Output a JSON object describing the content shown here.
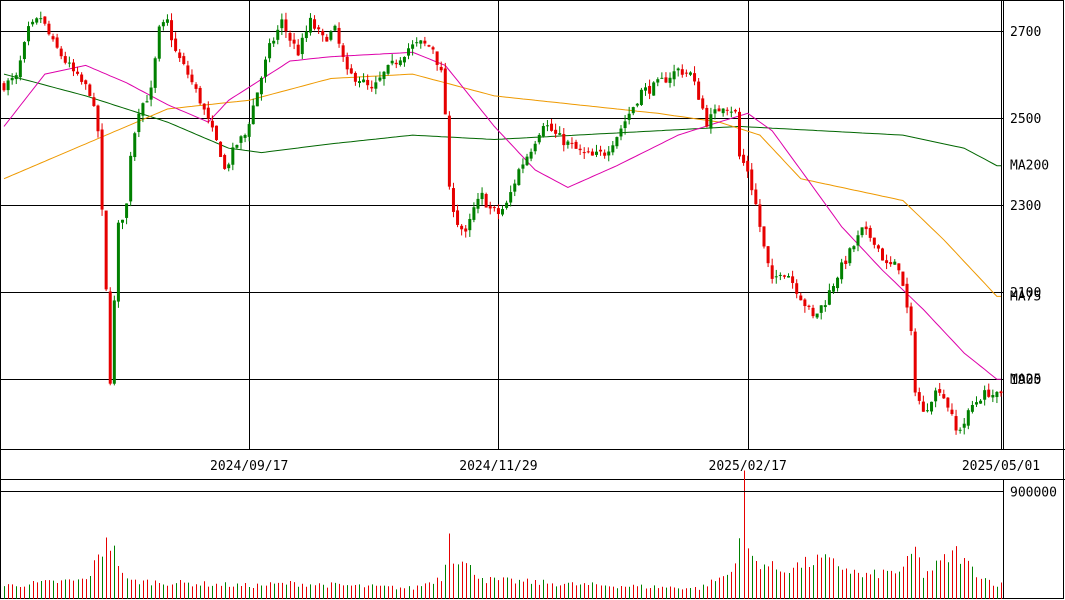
{
  "chart_data": {
    "type": "candlestick",
    "price_axis": {
      "ylim": [
        1740,
        2770
      ],
      "ticks": [
        1900,
        2100,
        2300,
        2500,
        2700
      ],
      "tick_labels": [
        "1900",
        "2100",
        "2300",
        "2500",
        "2700"
      ]
    },
    "volume_axis": {
      "ylim": [
        0,
        1000000
      ],
      "ticks": [
        900000
      ],
      "tick_labels": [
        "900000"
      ]
    },
    "date_ticks": [
      {
        "index": 60,
        "label": "2024/09/17"
      },
      {
        "index": 121,
        "label": "2024/11/29"
      },
      {
        "index": 182,
        "label": "2025/02/17"
      },
      {
        "index": 244,
        "label": "2025/05/01"
      }
    ],
    "legend": [
      {
        "name": "MA200",
        "color": "#006600"
      },
      {
        "name": "MA75",
        "color": "#ee9900"
      },
      {
        "name": "MA25",
        "color": "#dd00aa"
      }
    ],
    "colors": {
      "up": "#008000",
      "down": "#e60000",
      "ma200": "#006600",
      "ma75": "#ee9900",
      "ma25": "#dd00aa",
      "grid": "#000000",
      "volume": "#e60000",
      "volume_alt": "#008000"
    },
    "ohlc_anchors": [
      [
        0,
        2575
      ],
      [
        3,
        2590
      ],
      [
        6,
        2700
      ],
      [
        9,
        2730
      ],
      [
        12,
        2670
      ],
      [
        15,
        2630
      ],
      [
        18,
        2590
      ],
      [
        21,
        2560
      ],
      [
        23,
        2470
      ],
      [
        24,
        2280
      ],
      [
        25,
        2100
      ],
      [
        26,
        1900
      ],
      [
        28,
        2250
      ],
      [
        30,
        2300
      ],
      [
        31,
        2420
      ],
      [
        33,
        2520
      ],
      [
        36,
        2560
      ],
      [
        38,
        2700
      ],
      [
        40,
        2720
      ],
      [
        42,
        2650
      ],
      [
        45,
        2600
      ],
      [
        48,
        2540
      ],
      [
        50,
        2490
      ],
      [
        53,
        2420
      ],
      [
        54,
        2380
      ],
      [
        57,
        2440
      ],
      [
        59,
        2460
      ],
      [
        62,
        2560
      ],
      [
        65,
        2660
      ],
      [
        68,
        2720
      ],
      [
        70,
        2680
      ],
      [
        72,
        2650
      ],
      [
        75,
        2720
      ],
      [
        78,
        2680
      ],
      [
        81,
        2700
      ],
      [
        84,
        2600
      ],
      [
        87,
        2590
      ],
      [
        90,
        2560
      ],
      [
        93,
        2600
      ],
      [
        96,
        2630
      ],
      [
        99,
        2660
      ],
      [
        102,
        2670
      ],
      [
        105,
        2660
      ],
      [
        107,
        2600
      ],
      [
        108,
        2510
      ],
      [
        109,
        2330
      ],
      [
        111,
        2260
      ],
      [
        113,
        2230
      ],
      [
        115,
        2290
      ],
      [
        117,
        2320
      ],
      [
        119,
        2290
      ],
      [
        121,
        2280
      ],
      [
        123,
        2300
      ],
      [
        126,
        2380
      ],
      [
        129,
        2430
      ],
      [
        132,
        2490
      ],
      [
        135,
        2460
      ],
      [
        138,
        2440
      ],
      [
        141,
        2420
      ],
      [
        144,
        2410
      ],
      [
        147,
        2420
      ],
      [
        150,
        2460
      ],
      [
        153,
        2510
      ],
      [
        156,
        2560
      ],
      [
        159,
        2570
      ],
      [
        162,
        2590
      ],
      [
        165,
        2610
      ],
      [
        168,
        2600
      ],
      [
        170,
        2550
      ],
      [
        172,
        2490
      ],
      [
        174,
        2510
      ],
      [
        176,
        2530
      ],
      [
        178,
        2520
      ],
      [
        179,
        2510
      ],
      [
        180,
        2410
      ],
      [
        182,
        2380
      ],
      [
        184,
        2300
      ],
      [
        186,
        2200
      ],
      [
        188,
        2120
      ],
      [
        190,
        2150
      ],
      [
        192,
        2140
      ],
      [
        195,
        2090
      ],
      [
        198,
        2040
      ],
      [
        201,
        2080
      ],
      [
        204,
        2140
      ],
      [
        207,
        2190
      ],
      [
        210,
        2240
      ],
      [
        213,
        2220
      ],
      [
        216,
        2160
      ],
      [
        219,
        2160
      ],
      [
        221,
        2060
      ],
      [
        222,
        2000
      ],
      [
        223,
        1880
      ],
      [
        225,
        1820
      ],
      [
        227,
        1860
      ],
      [
        229,
        1880
      ],
      [
        231,
        1840
      ],
      [
        233,
        1780
      ],
      [
        235,
        1800
      ],
      [
        237,
        1840
      ],
      [
        239,
        1860
      ],
      [
        241,
        1870
      ],
      [
        243,
        1860
      ]
    ],
    "ma200_anchors": [
      [
        0,
        2600
      ],
      [
        20,
        2550
      ],
      [
        40,
        2490
      ],
      [
        55,
        2430
      ],
      [
        63,
        2420
      ],
      [
        80,
        2440
      ],
      [
        100,
        2460
      ],
      [
        120,
        2450
      ],
      [
        140,
        2460
      ],
      [
        160,
        2470
      ],
      [
        180,
        2480
      ],
      [
        200,
        2470
      ],
      [
        220,
        2460
      ],
      [
        235,
        2430
      ],
      [
        243,
        2390
      ]
    ],
    "ma75_anchors": [
      [
        0,
        2360
      ],
      [
        20,
        2440
      ],
      [
        40,
        2520
      ],
      [
        60,
        2540
      ],
      [
        80,
        2590
      ],
      [
        100,
        2600
      ],
      [
        120,
        2550
      ],
      [
        140,
        2530
      ],
      [
        160,
        2510
      ],
      [
        175,
        2490
      ],
      [
        185,
        2460
      ],
      [
        195,
        2360
      ],
      [
        205,
        2340
      ],
      [
        220,
        2310
      ],
      [
        230,
        2220
      ],
      [
        243,
        2090
      ]
    ],
    "ma25_anchors": [
      [
        0,
        2480
      ],
      [
        10,
        2600
      ],
      [
        20,
        2620
      ],
      [
        30,
        2580
      ],
      [
        40,
        2530
      ],
      [
        50,
        2490
      ],
      [
        55,
        2540
      ],
      [
        70,
        2630
      ],
      [
        80,
        2640
      ],
      [
        100,
        2650
      ],
      [
        108,
        2620
      ],
      [
        120,
        2480
      ],
      [
        130,
        2380
      ],
      [
        138,
        2340
      ],
      [
        150,
        2390
      ],
      [
        165,
        2460
      ],
      [
        175,
        2490
      ],
      [
        182,
        2510
      ],
      [
        188,
        2470
      ],
      [
        195,
        2380
      ],
      [
        205,
        2250
      ],
      [
        215,
        2150
      ],
      [
        225,
        2060
      ],
      [
        235,
        1960
      ],
      [
        243,
        1900
      ]
    ],
    "volume_anchors": [
      [
        0,
        110000
      ],
      [
        20,
        160000
      ],
      [
        24,
        400000
      ],
      [
        25,
        540000
      ],
      [
        26,
        470000
      ],
      [
        30,
        150000
      ],
      [
        60,
        110000
      ],
      [
        70,
        130000
      ],
      [
        100,
        90000
      ],
      [
        107,
        180000
      ],
      [
        108,
        290000
      ],
      [
        109,
        650000
      ],
      [
        110,
        360000
      ],
      [
        111,
        330000
      ],
      [
        114,
        250000
      ],
      [
        118,
        160000
      ],
      [
        140,
        120000
      ],
      [
        170,
        90000
      ],
      [
        178,
        220000
      ],
      [
        180,
        520000
      ],
      [
        181,
        920000
      ],
      [
        182,
        430000
      ],
      [
        183,
        330000
      ],
      [
        190,
        240000
      ],
      [
        200,
        330000
      ],
      [
        205,
        270000
      ],
      [
        210,
        190000
      ],
      [
        220,
        240000
      ],
      [
        223,
        420000
      ],
      [
        225,
        200000
      ],
      [
        229,
        300000
      ],
      [
        233,
        390000
      ],
      [
        236,
        280000
      ],
      [
        240,
        170000
      ],
      [
        243,
        120000
      ]
    ]
  }
}
